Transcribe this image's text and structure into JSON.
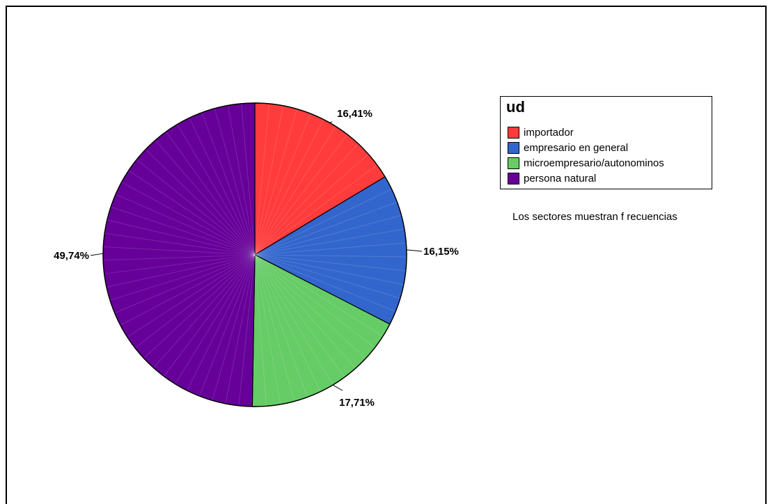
{
  "chart_data": {
    "type": "pie",
    "legend_title": "ud",
    "categories": [
      "importador",
      "empresario en general",
      "microempresario/autonominos",
      "persona natural"
    ],
    "values": [
      16.41,
      16.15,
      17.71,
      49.74
    ],
    "labels": [
      "16,41%",
      "16,15%",
      "17,71%",
      "49,74%"
    ],
    "colors": [
      "#ff3b3b",
      "#3366cc",
      "#66cc66",
      "#660099"
    ],
    "note": "Los sectores muestran f recuencias",
    "legend_placement": "right"
  }
}
